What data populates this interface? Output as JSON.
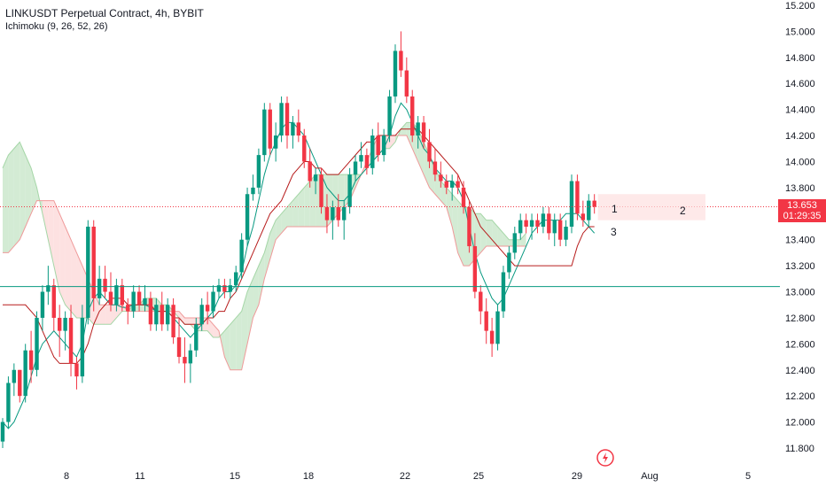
{
  "header": {
    "title": "LINKUSDT Perpetual Contract, 4h, BYBIT",
    "indicator": "Ichimoku (9, 26, 52, 26)"
  },
  "price_tag": {
    "price": "13.653",
    "countdown": "01:29:35",
    "color": "#f23645"
  },
  "markers": [
    "1",
    "2",
    "3"
  ],
  "colors": {
    "up": "#089981",
    "down": "#f23645",
    "conversion_line": "#089981",
    "base_line": "#b71c1c",
    "cloud_bull": "#c8e6c9",
    "cloud_bear": "#fcd9d9",
    "horizontal_level": "#089981",
    "last_price_line": "#f23645"
  },
  "icons": {
    "logo": "tradingview-logo-icon"
  },
  "chart_data": {
    "type": "candlestick",
    "title": "LINKUSDT Perpetual Contract, 4h, BYBIT",
    "indicator": "Ichimoku (9, 26, 52, 26)",
    "y_ticks": [
      "15.200",
      "15.000",
      "14.800",
      "14.600",
      "14.400",
      "14.200",
      "14.000",
      "13.800",
      "13.600",
      "13.400",
      "13.200",
      "13.000",
      "12.800",
      "12.600",
      "12.400",
      "12.200",
      "12.000",
      "11.800"
    ],
    "x_ticks": [
      "8",
      "11",
      "15",
      "18",
      "22",
      "25",
      "29",
      "Aug",
      "5"
    ],
    "ylim": [
      11.7,
      15.25
    ],
    "last_price": 13.653,
    "horizontal_level": 13.04,
    "grid": false,
    "candles_ohlc": [
      [
        11.85,
        12.03,
        11.8,
        12.0
      ],
      [
        12.0,
        12.35,
        11.95,
        12.3
      ],
      [
        12.3,
        12.45,
        12.2,
        12.4
      ],
      [
        12.4,
        12.4,
        12.15,
        12.2
      ],
      [
        12.2,
        12.6,
        12.15,
        12.55
      ],
      [
        12.55,
        12.7,
        12.3,
        12.4
      ],
      [
        12.4,
        12.85,
        12.35,
        12.8
      ],
      [
        12.8,
        13.05,
        12.7,
        13.0
      ],
      [
        13.0,
        13.2,
        12.9,
        13.05
      ],
      [
        13.05,
        13.1,
        12.7,
        12.8
      ],
      [
        12.8,
        12.9,
        12.5,
        12.7
      ],
      [
        12.7,
        12.85,
        12.55,
        12.8
      ],
      [
        12.8,
        12.9,
        12.35,
        12.45
      ],
      [
        12.45,
        12.5,
        12.25,
        12.35
      ],
      [
        12.35,
        12.9,
        12.3,
        12.8
      ],
      [
        12.8,
        13.55,
        12.75,
        13.5
      ],
      [
        13.5,
        13.55,
        12.85,
        12.95
      ],
      [
        12.95,
        13.2,
        12.9,
        13.1
      ],
      [
        13.1,
        13.2,
        12.95,
        13.0
      ],
      [
        13.0,
        13.15,
        12.85,
        12.9
      ],
      [
        12.9,
        13.1,
        12.85,
        13.05
      ],
      [
        13.05,
        13.1,
        12.85,
        12.9
      ],
      [
        12.9,
        12.95,
        12.75,
        12.85
      ],
      [
        12.85,
        13.05,
        12.8,
        13.0
      ],
      [
        13.0,
        13.05,
        12.85,
        12.9
      ],
      [
        12.9,
        13.05,
        12.85,
        12.95
      ],
      [
        12.95,
        13.0,
        12.7,
        12.75
      ],
      [
        12.75,
        12.95,
        12.7,
        12.9
      ],
      [
        12.9,
        13.0,
        12.7,
        12.75
      ],
      [
        12.75,
        12.95,
        12.7,
        12.9
      ],
      [
        12.9,
        12.95,
        12.6,
        12.65
      ],
      [
        12.65,
        12.8,
        12.45,
        12.5
      ],
      [
        12.5,
        12.65,
        12.3,
        12.45
      ],
      [
        12.45,
        12.6,
        12.3,
        12.55
      ],
      [
        12.55,
        12.8,
        12.5,
        12.75
      ],
      [
        12.75,
        12.95,
        12.7,
        12.9
      ],
      [
        12.9,
        13.0,
        12.75,
        12.85
      ],
      [
        12.85,
        13.05,
        12.8,
        13.0
      ],
      [
        13.0,
        13.1,
        12.95,
        13.05
      ],
      [
        13.05,
        13.1,
        12.95,
        13.0
      ],
      [
        13.0,
        13.1,
        12.95,
        13.05
      ],
      [
        13.05,
        13.2,
        13.0,
        13.15
      ],
      [
        13.15,
        13.45,
        13.1,
        13.4
      ],
      [
        13.4,
        13.8,
        13.35,
        13.75
      ],
      [
        13.75,
        13.9,
        13.7,
        13.8
      ],
      [
        13.8,
        14.1,
        13.75,
        14.05
      ],
      [
        14.05,
        14.45,
        14.0,
        14.4
      ],
      [
        14.4,
        14.45,
        14.05,
        14.1
      ],
      [
        14.1,
        14.3,
        14.0,
        14.2
      ],
      [
        14.2,
        14.5,
        14.15,
        14.45
      ],
      [
        14.45,
        14.5,
        14.1,
        14.2
      ],
      [
        14.2,
        14.35,
        14.1,
        14.3
      ],
      [
        14.3,
        14.4,
        14.15,
        14.2
      ],
      [
        14.2,
        14.25,
        13.95,
        14.0
      ],
      [
        14.0,
        14.1,
        13.8,
        13.85
      ],
      [
        13.85,
        13.95,
        13.75,
        13.9
      ],
      [
        13.9,
        13.95,
        13.6,
        13.65
      ],
      [
        13.65,
        13.75,
        13.45,
        13.55
      ],
      [
        13.55,
        13.7,
        13.4,
        13.65
      ],
      [
        13.65,
        13.75,
        13.5,
        13.55
      ],
      [
        13.55,
        13.7,
        13.4,
        13.65
      ],
      [
        13.65,
        13.95,
        13.6,
        13.9
      ],
      [
        13.9,
        14.05,
        13.85,
        14.0
      ],
      [
        14.0,
        14.15,
        13.95,
        14.05
      ],
      [
        14.05,
        14.1,
        13.9,
        13.95
      ],
      [
        13.95,
        14.25,
        13.9,
        14.2
      ],
      [
        14.2,
        14.3,
        14.0,
        14.05
      ],
      [
        14.05,
        14.25,
        14.0,
        14.2
      ],
      [
        14.2,
        14.55,
        14.15,
        14.5
      ],
      [
        14.5,
        14.9,
        14.45,
        14.85
      ],
      [
        14.85,
        15.0,
        14.65,
        14.7
      ],
      [
        14.7,
        14.8,
        14.45,
        14.5
      ],
      [
        14.5,
        14.55,
        14.15,
        14.2
      ],
      [
        14.2,
        14.35,
        14.1,
        14.3
      ],
      [
        14.3,
        14.35,
        14.1,
        14.15
      ],
      [
        14.15,
        14.25,
        13.95,
        14.0
      ],
      [
        14.0,
        14.1,
        13.85,
        13.9
      ],
      [
        13.9,
        14.0,
        13.8,
        13.85
      ],
      [
        13.85,
        13.9,
        13.75,
        13.8
      ],
      [
        13.8,
        13.9,
        13.7,
        13.85
      ],
      [
        13.85,
        13.9,
        13.75,
        13.8
      ],
      [
        13.8,
        13.85,
        13.6,
        13.65
      ],
      [
        13.65,
        13.7,
        13.3,
        13.35
      ],
      [
        13.35,
        13.45,
        12.95,
        13.0
      ],
      [
        13.0,
        13.05,
        12.75,
        12.85
      ],
      [
        12.85,
        12.95,
        12.6,
        12.7
      ],
      [
        12.7,
        12.8,
        12.5,
        12.6
      ],
      [
        12.6,
        12.9,
        12.55,
        12.85
      ],
      [
        12.85,
        13.2,
        12.8,
        13.15
      ],
      [
        13.15,
        13.35,
        13.1,
        13.3
      ],
      [
        13.3,
        13.5,
        13.25,
        13.45
      ],
      [
        13.45,
        13.6,
        13.4,
        13.55
      ],
      [
        13.55,
        13.6,
        13.45,
        13.5
      ],
      [
        13.5,
        13.6,
        13.4,
        13.55
      ],
      [
        13.55,
        13.6,
        13.45,
        13.5
      ],
      [
        13.5,
        13.65,
        13.45,
        13.6
      ],
      [
        13.6,
        13.65,
        13.4,
        13.45
      ],
      [
        13.45,
        13.6,
        13.35,
        13.55
      ],
      [
        13.55,
        13.6,
        13.35,
        13.4
      ],
      [
        13.4,
        13.55,
        13.35,
        13.5
      ],
      [
        13.5,
        13.9,
        13.45,
        13.85
      ],
      [
        13.85,
        13.9,
        13.55,
        13.6
      ],
      [
        13.6,
        13.7,
        13.5,
        13.55
      ],
      [
        13.55,
        13.75,
        13.5,
        13.7
      ],
      [
        13.7,
        13.75,
        13.6,
        13.653
      ]
    ],
    "conversion_line_y": [
      12.0,
      11.95,
      12.0,
      12.1,
      12.2,
      12.35,
      12.5,
      12.6,
      12.65,
      12.7,
      12.65,
      12.6,
      12.55,
      12.5,
      12.6,
      12.85,
      12.95,
      13.0,
      12.95,
      12.9,
      12.9,
      12.88,
      12.88,
      12.9,
      12.9,
      12.9,
      12.88,
      12.85,
      12.85,
      12.85,
      12.8,
      12.75,
      12.7,
      12.65,
      12.7,
      12.75,
      12.8,
      12.85,
      12.95,
      13.0,
      13.0,
      13.05,
      13.15,
      13.35,
      13.5,
      13.7,
      13.9,
      14.05,
      14.15,
      14.25,
      14.3,
      14.3,
      14.25,
      14.2,
      14.1,
      14.0,
      13.9,
      13.8,
      13.75,
      13.7,
      13.7,
      13.75,
      13.85,
      13.9,
      13.95,
      14.0,
      14.05,
      14.1,
      14.2,
      14.35,
      14.45,
      14.4,
      14.3,
      14.2,
      14.1,
      14.05,
      13.95,
      13.9,
      13.85,
      13.85,
      13.8,
      13.7,
      13.5,
      13.3,
      13.15,
      13.05,
      12.95,
      12.9,
      12.95,
      13.05,
      13.15,
      13.25,
      13.35,
      13.45,
      13.5,
      13.55,
      13.55,
      13.55,
      13.55,
      13.6,
      13.6,
      13.6,
      13.55,
      13.5,
      13.45
    ],
    "base_line_y": [
      12.9,
      12.9,
      12.9,
      12.9,
      12.9,
      12.85,
      12.8,
      12.7,
      12.6,
      12.5,
      12.45,
      12.45,
      12.45,
      12.45,
      12.5,
      12.6,
      12.75,
      12.85,
      12.9,
      12.95,
      12.95,
      12.95,
      12.9,
      12.9,
      12.9,
      12.9,
      12.9,
      12.85,
      12.85,
      12.85,
      12.8,
      12.8,
      12.75,
      12.75,
      12.75,
      12.75,
      12.8,
      12.8,
      12.85,
      12.85,
      12.95,
      13.0,
      13.1,
      13.2,
      13.3,
      13.4,
      13.5,
      13.6,
      13.65,
      13.7,
      13.8,
      13.9,
      13.95,
      14.0,
      14.0,
      13.95,
      13.95,
      13.9,
      13.9,
      13.9,
      13.95,
      14.0,
      14.05,
      14.1,
      14.15,
      14.15,
      14.2,
      14.2,
      14.2,
      14.2,
      14.25,
      14.25,
      14.25,
      14.25,
      14.2,
      14.15,
      14.1,
      14.05,
      14.0,
      13.95,
      13.9,
      13.8,
      13.7,
      13.6,
      13.5,
      13.45,
      13.4,
      13.35,
      13.3,
      13.25,
      13.2,
      13.2,
      13.2,
      13.2,
      13.2,
      13.2,
      13.2,
      13.2,
      13.2,
      13.2,
      13.2,
      13.35,
      13.45,
      13.5,
      13.5
    ],
    "cloud_span_a_y": [
      13.95,
      14.05,
      14.1,
      14.15,
      14.05,
      13.95,
      13.8,
      13.6,
      13.4,
      13.2,
      13.0,
      12.9,
      12.85,
      12.8,
      12.8,
      12.8,
      12.75,
      12.75,
      12.75,
      12.75,
      12.8,
      12.85,
      12.85,
      12.9,
      12.9,
      12.95,
      12.95,
      12.95,
      12.9,
      12.9,
      12.85,
      12.8,
      12.75,
      12.75,
      12.7,
      12.7,
      12.7,
      12.65,
      12.65,
      12.7,
      12.75,
      12.8,
      12.85,
      13.0,
      13.1,
      13.2,
      13.3,
      13.45,
      13.55,
      13.6,
      13.65,
      13.7,
      13.75,
      13.8,
      13.85,
      13.9,
      13.9,
      13.9,
      13.9,
      13.9,
      13.9,
      13.9,
      13.9,
      13.9,
      13.95,
      14.0,
      14.05,
      14.1,
      14.1,
      14.15,
      14.25,
      14.3,
      14.3,
      14.25,
      14.15,
      14.05,
      13.95,
      13.85,
      13.8,
      13.75,
      13.7,
      13.65,
      13.65,
      13.6,
      13.6,
      13.55,
      13.55,
      13.5,
      13.45,
      13.4,
      13.4,
      13.4,
      13.45
    ],
    "cloud_span_b_y": [
      13.3,
      13.3,
      13.35,
      13.4,
      13.5,
      13.6,
      13.7,
      13.7,
      13.7,
      13.7,
      13.6,
      13.5,
      13.4,
      13.3,
      13.2,
      13.1,
      13.0,
      12.9,
      12.9,
      12.9,
      12.9,
      12.9,
      12.85,
      12.85,
      12.85,
      12.85,
      12.85,
      12.85,
      12.85,
      12.85,
      12.85,
      12.85,
      12.8,
      12.8,
      12.8,
      12.8,
      12.8,
      12.75,
      12.7,
      12.5,
      12.4,
      12.4,
      12.4,
      12.6,
      12.8,
      12.9,
      13.1,
      13.25,
      13.4,
      13.45,
      13.5,
      13.5,
      13.5,
      13.5,
      13.5,
      13.5,
      13.5,
      13.5,
      13.55,
      13.6,
      13.65,
      13.7,
      13.8,
      13.9,
      14.0,
      14.1,
      14.2,
      14.2,
      14.2,
      14.2,
      14.2,
      14.2,
      14.1,
      14.0,
      13.9,
      13.8,
      13.75,
      13.7,
      13.65,
      13.5,
      13.3,
      13.2,
      13.2,
      13.25,
      13.3,
      13.35,
      13.35,
      13.35,
      13.35,
      13.35,
      13.35,
      13.35,
      13.35
    ]
  }
}
